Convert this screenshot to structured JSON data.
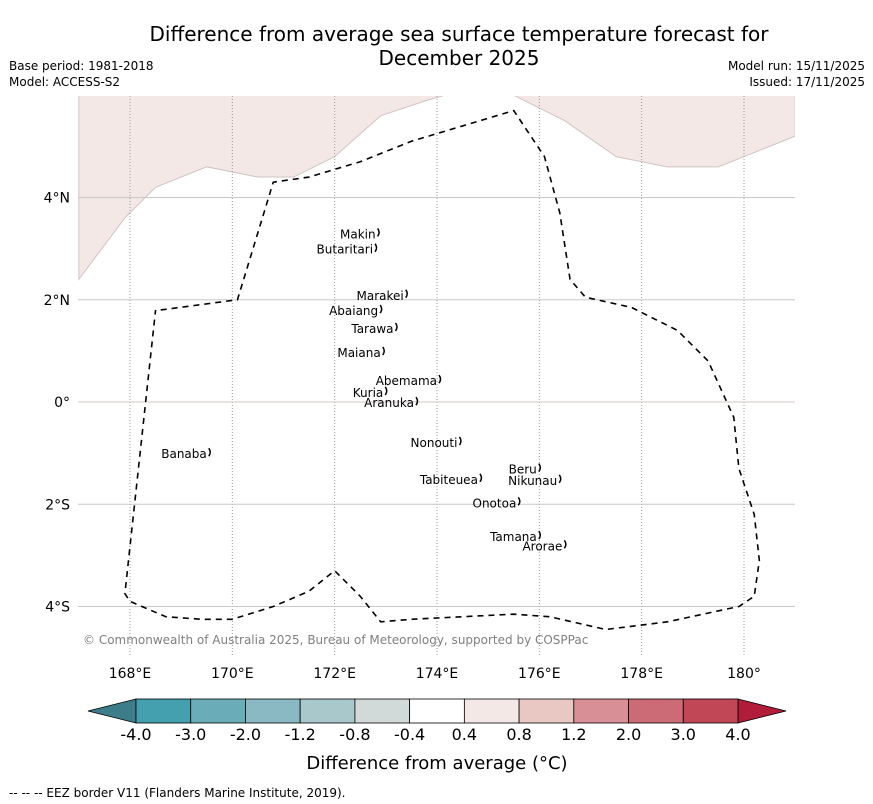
{
  "title_line1": "Difference from average sea surface temperature forecast for",
  "title_line2": "December 2025",
  "base_period": "Base period: 1981-2018",
  "model": "Model: ACCESS-S2",
  "model_run": "Model run: 15/11/2025",
  "issued": "Issued: 17/11/2025",
  "copyright": "© Commonwealth of Australia 2025, Bureau of Meteorology, supported by COSPPac",
  "footer_note": "--  --  -- EEZ border V11 (Flanders Marine Institute, 2019).",
  "map": {
    "lon_range": [
      167,
      181
    ],
    "lat_range": [
      -5,
      6
    ],
    "lon_ticks": [
      {
        "value": 168,
        "label": "168°E"
      },
      {
        "value": 170,
        "label": "170°E"
      },
      {
        "value": 172,
        "label": "172°E"
      },
      {
        "value": 174,
        "label": "174°E"
      },
      {
        "value": 176,
        "label": "176°E"
      },
      {
        "value": 178,
        "label": "178°E"
      },
      {
        "value": 180,
        "label": "180°"
      }
    ],
    "lat_ticks": [
      {
        "value": 4,
        "label": "4°N"
      },
      {
        "value": 2,
        "label": "2°N"
      },
      {
        "value": 0,
        "label": "0°"
      },
      {
        "value": -2,
        "label": "2°S"
      },
      {
        "value": -4,
        "label": "4°S"
      }
    ],
    "anomaly_regions": [
      {
        "category": "0.4 to 0.8",
        "color": "#f4e8e6",
        "outline": [
          [
            167,
            2.4
          ],
          [
            167.9,
            3.6
          ],
          [
            168.5,
            4.2
          ],
          [
            169.5,
            4.6
          ],
          [
            170.5,
            4.4
          ],
          [
            171.2,
            4.4
          ],
          [
            172,
            4.8
          ],
          [
            172.9,
            5.6
          ],
          [
            173.8,
            5.9
          ],
          [
            174.5,
            6.1
          ],
          [
            175.5,
            6
          ],
          [
            176.5,
            5.5
          ],
          [
            177.5,
            4.8
          ],
          [
            178.5,
            4.6
          ],
          [
            179.5,
            4.6
          ],
          [
            181,
            5.2
          ],
          [
            181,
            6.1
          ],
          [
            167,
            6.1
          ]
        ]
      }
    ],
    "eez_border": [
      [
        168.6,
        1.8
      ],
      [
        170.1,
        2.0
      ],
      [
        170.8,
        4.3
      ],
      [
        171.5,
        4.4
      ],
      [
        172.5,
        4.7
      ],
      [
        173.5,
        5.1
      ],
      [
        174.5,
        5.4
      ],
      [
        175.5,
        5.7
      ],
      [
        176.1,
        4.8
      ],
      [
        176.4,
        3.7
      ],
      [
        176.6,
        2.4
      ],
      [
        176.9,
        2.05
      ],
      [
        177.8,
        1.85
      ],
      [
        178.7,
        1.4
      ],
      [
        179.3,
        0.8
      ],
      [
        179.8,
        -0.3
      ],
      [
        179.9,
        -1.3
      ],
      [
        180.2,
        -2.2
      ],
      [
        180.3,
        -3.1
      ],
      [
        180.2,
        -3.8
      ],
      [
        179.9,
        -4.0
      ],
      [
        178.5,
        -4.3
      ],
      [
        177.3,
        -4.45
      ],
      [
        176.2,
        -4.2
      ],
      [
        175.5,
        -4.15
      ],
      [
        174.5,
        -4.2
      ],
      [
        173.5,
        -4.25
      ],
      [
        172.9,
        -4.3
      ],
      [
        172.5,
        -3.8
      ],
      [
        172,
        -3.3
      ],
      [
        171.5,
        -3.7
      ],
      [
        170.8,
        -4.0
      ],
      [
        170,
        -4.25
      ],
      [
        169.4,
        -4.25
      ],
      [
        168.7,
        -4.2
      ],
      [
        168,
        -3.9
      ],
      [
        167.9,
        -3.75
      ],
      [
        168.5,
        1.8
      ]
    ],
    "places": [
      {
        "name": "Makin",
        "lon": 172.8,
        "lat": 3.2
      },
      {
        "name": "Butaritari",
        "lon": 172.75,
        "lat": 2.9
      },
      {
        "name": "Marakei",
        "lon": 173.35,
        "lat": 2.0
      },
      {
        "name": "Abaiang",
        "lon": 172.85,
        "lat": 1.7
      },
      {
        "name": "Tarawa",
        "lon": 173.15,
        "lat": 1.35
      },
      {
        "name": "Maiana",
        "lon": 172.9,
        "lat": 0.88
      },
      {
        "name": "Abemama",
        "lon": 174.0,
        "lat": 0.33
      },
      {
        "name": "Kuria",
        "lon": 172.95,
        "lat": 0.1
      },
      {
        "name": "Aranuka",
        "lon": 173.55,
        "lat": -0.1
      },
      {
        "name": "Banaba",
        "lon": 169.5,
        "lat": -1.1
      },
      {
        "name": "Nonouti",
        "lon": 174.4,
        "lat": -0.88
      },
      {
        "name": "Beru",
        "lon": 175.95,
        "lat": -1.4
      },
      {
        "name": "Tabiteuea",
        "lon": 174.8,
        "lat": -1.6
      },
      {
        "name": "Nikunau",
        "lon": 176.35,
        "lat": -1.62
      },
      {
        "name": "Onotoa",
        "lon": 175.55,
        "lat": -2.06
      },
      {
        "name": "Tamana",
        "lon": 175.95,
        "lat": -2.72
      },
      {
        "name": "Arorae",
        "lon": 176.45,
        "lat": -2.9
      }
    ]
  },
  "colorbar": {
    "title": "Difference from average (°C)",
    "ticks": [
      "-4.0",
      "-3.0",
      "-2.0",
      "-1.2",
      "-0.8",
      "-0.4",
      "0.4",
      "0.8",
      "1.2",
      "2.0",
      "3.0",
      "4.0"
    ],
    "under_color": "#3d7d8a",
    "over_color": "#b01c3a",
    "colors": [
      "#449fae",
      "#6aadb9",
      "#8ab8c3",
      "#a8c8cc",
      "#d2dad9",
      "#ffffff",
      "#f4e8e6",
      "#e9c8c4",
      "#d98f96",
      "#cc6a75",
      "#c14656"
    ]
  }
}
